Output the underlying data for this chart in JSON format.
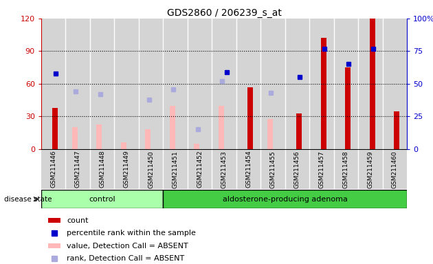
{
  "title": "GDS2860 / 206239_s_at",
  "samples": [
    "GSM211446",
    "GSM211447",
    "GSM211448",
    "GSM211449",
    "GSM211450",
    "GSM211451",
    "GSM211452",
    "GSM211453",
    "GSM211454",
    "GSM211455",
    "GSM211456",
    "GSM211457",
    "GSM211458",
    "GSM211459",
    "GSM211460"
  ],
  "control_count": 5,
  "count": [
    38,
    null,
    null,
    null,
    null,
    null,
    null,
    null,
    57,
    null,
    33,
    102,
    75,
    120,
    35
  ],
  "percentile_rank": [
    58,
    null,
    null,
    null,
    null,
    null,
    null,
    59,
    null,
    null,
    55,
    77,
    65,
    77,
    null
  ],
  "value_absent": [
    null,
    20,
    23,
    6,
    18,
    40,
    5,
    40,
    null,
    28,
    null,
    null,
    null,
    null,
    null
  ],
  "rank_absent": [
    null,
    44,
    42,
    null,
    38,
    46,
    15,
    52,
    null,
    43,
    null,
    null,
    null,
    null,
    null
  ],
  "ylim_left": [
    0,
    120
  ],
  "ylim_right": [
    0,
    100
  ],
  "yticks_left": [
    0,
    30,
    60,
    90,
    120
  ],
  "yticks_right": [
    0,
    25,
    50,
    75,
    100
  ],
  "bar_color_red": "#cc0000",
  "bar_color_pink": "#ffb8b8",
  "dot_color_blue": "#0000cc",
  "dot_color_lightblue": "#aaaadd",
  "group_control_color": "#aaffaa",
  "group_aldosterone_color": "#44cc44",
  "group_bg_color": "#d4d4d4",
  "legend_items": [
    {
      "label": "count",
      "color": "#cc0000",
      "type": "bar"
    },
    {
      "label": "percentile rank within the sample",
      "color": "#0000cc",
      "type": "dot"
    },
    {
      "label": "value, Detection Call = ABSENT",
      "color": "#ffb8b8",
      "type": "bar"
    },
    {
      "label": "rank, Detection Call = ABSENT",
      "color": "#aaaadd",
      "type": "dot"
    }
  ]
}
